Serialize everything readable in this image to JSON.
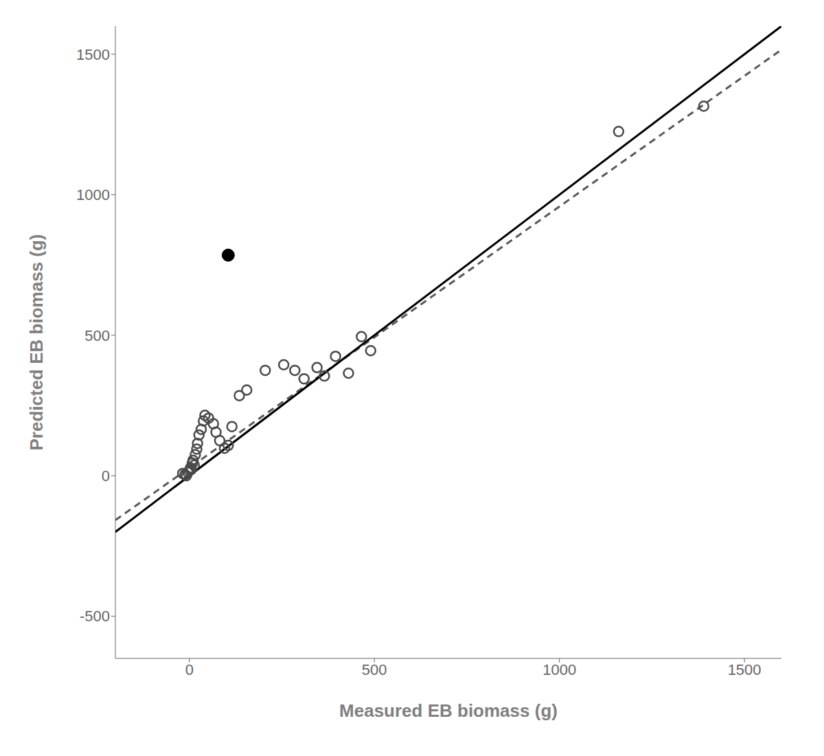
{
  "chart_data": {
    "type": "scatter",
    "xlabel": "Measured EB biomass (g)",
    "ylabel": "Predicted EB biomass (g)",
    "xlim": [
      -200,
      1600
    ],
    "ylim": [
      -650,
      1600
    ],
    "xticks": [
      0,
      500,
      1000,
      1500
    ],
    "yticks": [
      -500,
      0,
      500,
      1000,
      1500
    ],
    "grid": false,
    "series": [
      {
        "type": "line",
        "x": [
          -200,
          1600
        ],
        "values": [
          -158,
          1516
        ],
        "color": "#595959",
        "line_style": "dashed"
      },
      {
        "type": "line",
        "x": [
          -200,
          1600
        ],
        "values": [
          -200,
          1600
        ],
        "color": "#000000",
        "line_style": "solid"
      },
      {
        "type": "scatter",
        "x": [
          -18,
          -12,
          -8,
          -4,
          0,
          3,
          5,
          8,
          10,
          13,
          16,
          20,
          22,
          26,
          32,
          38,
          42,
          52,
          65,
          72,
          82,
          95,
          105,
          115,
          135,
          155,
          205,
          255,
          285,
          310,
          345,
          365,
          395,
          430,
          465,
          490,
          1160,
          1390
        ],
        "values": [
          8,
          4,
          0,
          12,
          18,
          28,
          22,
          45,
          55,
          38,
          75,
          95,
          115,
          145,
          165,
          195,
          215,
          205,
          185,
          155,
          125,
          98,
          108,
          175,
          285,
          305,
          375,
          395,
          375,
          345,
          385,
          355,
          425,
          365,
          495,
          445,
          1225,
          1315
        ],
        "color": "#4a4a4a",
        "marker": "open_circle"
      },
      {
        "type": "scatter",
        "x": [
          105
        ],
        "values": [
          785
        ],
        "color": "#000000",
        "marker": "filled_circle"
      }
    ]
  }
}
